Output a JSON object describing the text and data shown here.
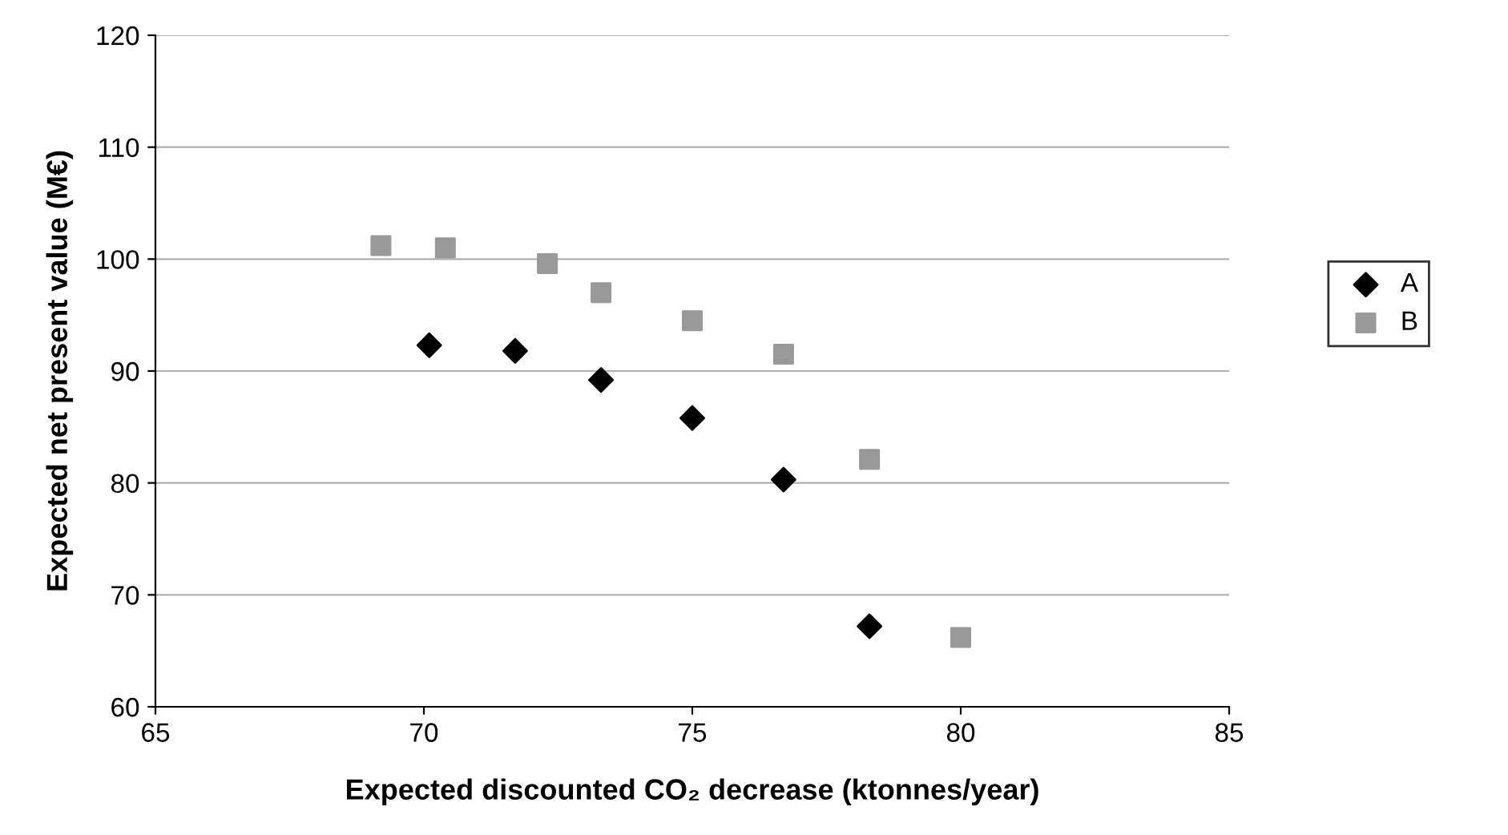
{
  "chart_data": {
    "type": "scatter",
    "xlabel": "Expected discounted CO₂ decrease (ktonnes/year)",
    "ylabel": "Expected net present value (M€)",
    "series": [
      {
        "name": "A",
        "color": "#000000",
        "marker": "diamond",
        "x": [
          70.1,
          71.7,
          73.3,
          75.0,
          76.7,
          78.3
        ],
        "values": [
          92.3,
          91.8,
          89.2,
          85.8,
          80.3,
          67.2
        ]
      },
      {
        "name": "B",
        "color": "#999999",
        "marker": "square",
        "x": [
          69.2,
          70.4,
          72.3,
          73.3,
          75.0,
          76.7,
          78.3,
          80.0
        ],
        "values": [
          101.2,
          101.0,
          99.6,
          97.0,
          94.5,
          91.5,
          82.1,
          66.2
        ]
      }
    ],
    "xlim": [
      65,
      85
    ],
    "xticks": [
      65,
      70,
      75,
      80,
      85
    ],
    "ylim": [
      60,
      120
    ],
    "yticks": [
      60,
      70,
      80,
      90,
      100,
      110,
      120
    ],
    "grid": "y",
    "legend": "right"
  }
}
